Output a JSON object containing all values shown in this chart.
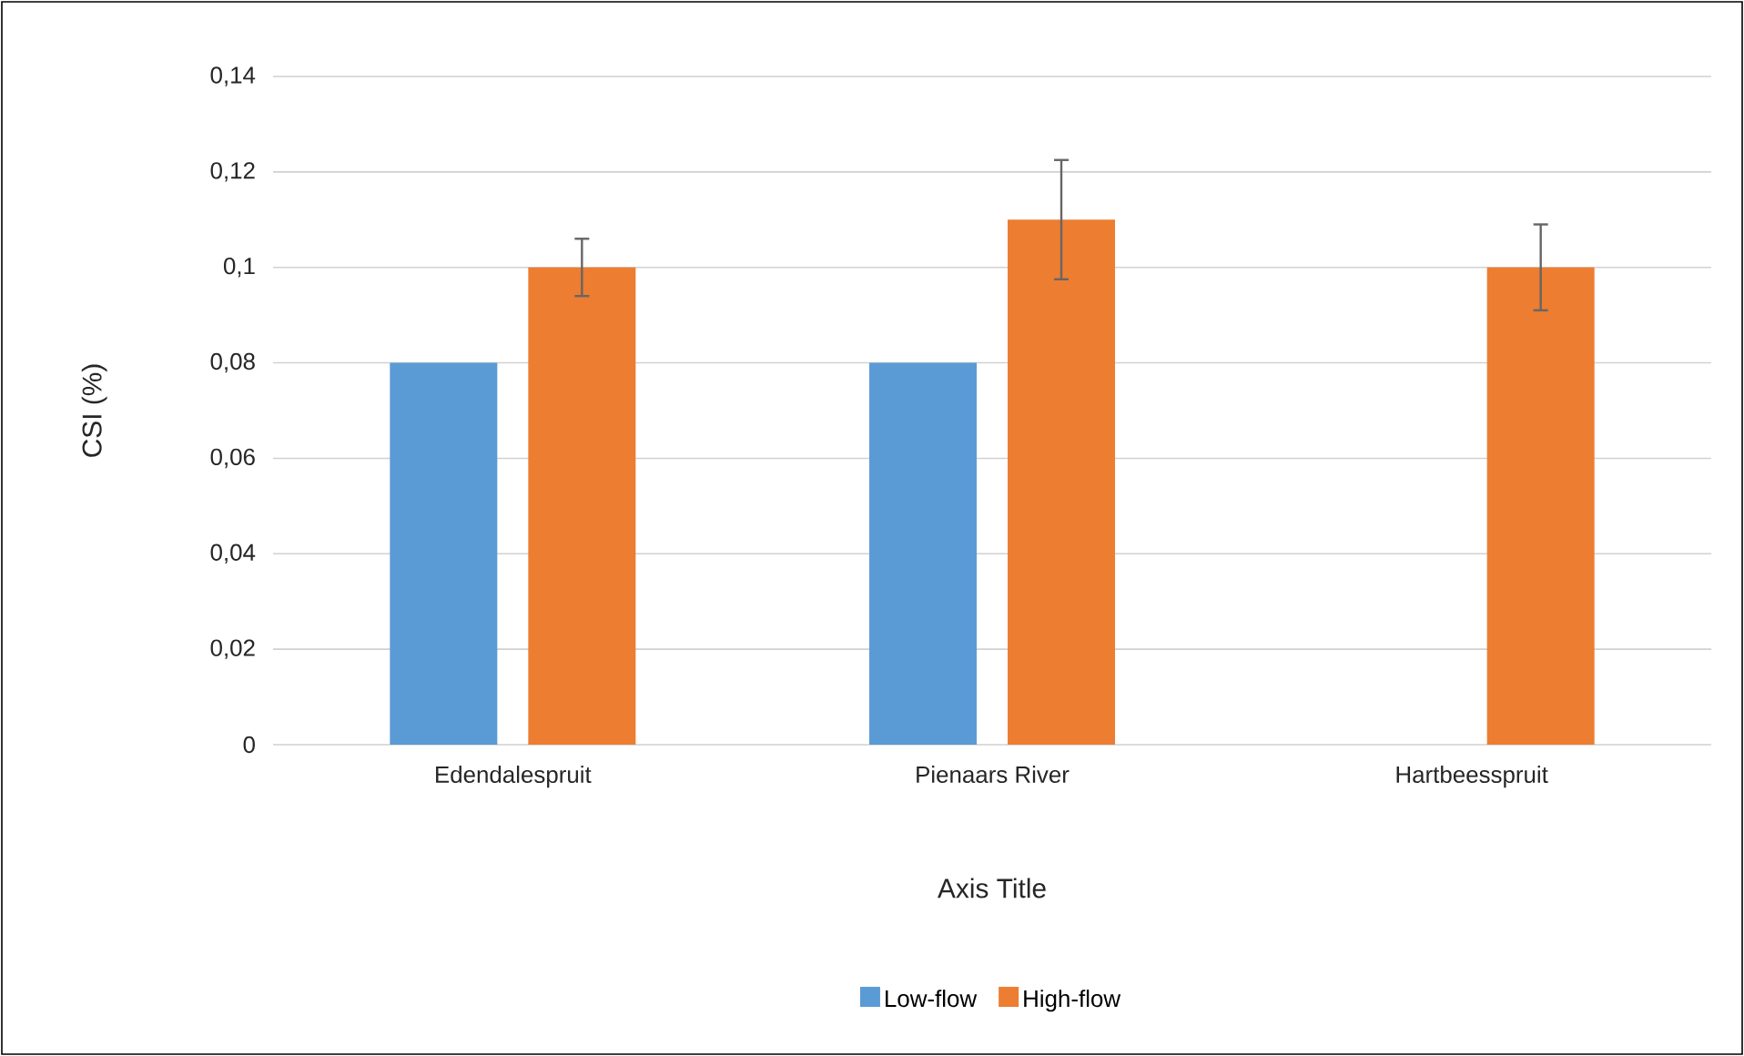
{
  "chart_data": {
    "type": "bar",
    "ylabel": "CSI (%)",
    "xlabel": "Axis Title",
    "categories": [
      "Edendalespruit",
      "Pienaars River",
      "Hartbeesspruit"
    ],
    "series": [
      {
        "name": "Low-flow",
        "color": "#5b9bd5",
        "values": [
          0.08,
          0.08,
          null
        ]
      },
      {
        "name": "High-flow",
        "color": "#ed7d31",
        "values": [
          0.1,
          0.11,
          0.1
        ],
        "errors": [
          0.006,
          0.0125,
          0.009
        ]
      }
    ],
    "ylim": [
      0,
      0.14
    ],
    "yticks": [
      0,
      {
        "value": 0.02,
        "label": "0,02"
      },
      {
        "value": 0.04,
        "label": "0,04"
      },
      {
        "value": 0.06,
        "label": "0,06"
      },
      {
        "value": 0.08,
        "label": "0,08"
      },
      {
        "value": 0.1,
        "label": "0,1"
      },
      {
        "value": 0.12,
        "label": "0,12"
      },
      {
        "value": 0.14,
        "label": "0,14"
      }
    ],
    "grid": "y",
    "legend": "bottom"
  }
}
